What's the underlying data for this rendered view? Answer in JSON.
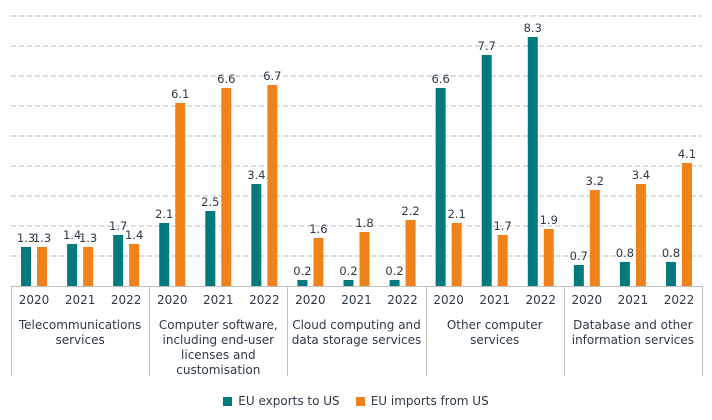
{
  "chart_data": {
    "type": "bar",
    "title": "",
    "xlabel": "",
    "ylabel": "",
    "ylim": [
      0,
      9
    ],
    "grid": true,
    "y_tick_labels_visible": false,
    "legend_position": "bottom-center",
    "groups": [
      {
        "label_lines": [
          "Telecommunications",
          "services"
        ],
        "years": [
          "2020",
          "2021",
          "2022"
        ]
      },
      {
        "label_lines": [
          "Computer software,",
          "including end-user",
          "licenses and",
          "customisation"
        ],
        "years": [
          "2020",
          "2021",
          "2022"
        ]
      },
      {
        "label_lines": [
          "Cloud computing and",
          "data storage services"
        ],
        "years": [
          "2020",
          "2021",
          "2022"
        ]
      },
      {
        "label_lines": [
          "Other computer",
          "services"
        ],
        "years": [
          "2020",
          "2021",
          "2022"
        ]
      },
      {
        "label_lines": [
          "Database and other",
          "information services"
        ],
        "years": [
          "2020",
          "2021",
          "2022"
        ]
      }
    ],
    "series": [
      {
        "name": "EU exports to US",
        "color": "#007A7C",
        "values": [
          [
            1.3,
            1.4,
            1.7
          ],
          [
            2.1,
            2.5,
            3.4
          ],
          [
            0.2,
            0.2,
            0.2
          ],
          [
            6.6,
            7.7,
            8.3
          ],
          [
            0.7,
            0.8,
            0.8
          ]
        ]
      },
      {
        "name": "EU imports from US",
        "color": "#F0821A",
        "values": [
          [
            1.3,
            1.3,
            1.4
          ],
          [
            6.1,
            6.6,
            6.7
          ],
          [
            1.6,
            1.8,
            2.2
          ],
          [
            2.1,
            1.7,
            1.9
          ],
          [
            3.2,
            3.4,
            4.1
          ]
        ]
      }
    ]
  },
  "legend": {
    "items": [
      {
        "label": "EU exports to US",
        "color": "#007A7C"
      },
      {
        "label": "EU imports from US",
        "color": "#F0821A"
      }
    ]
  }
}
